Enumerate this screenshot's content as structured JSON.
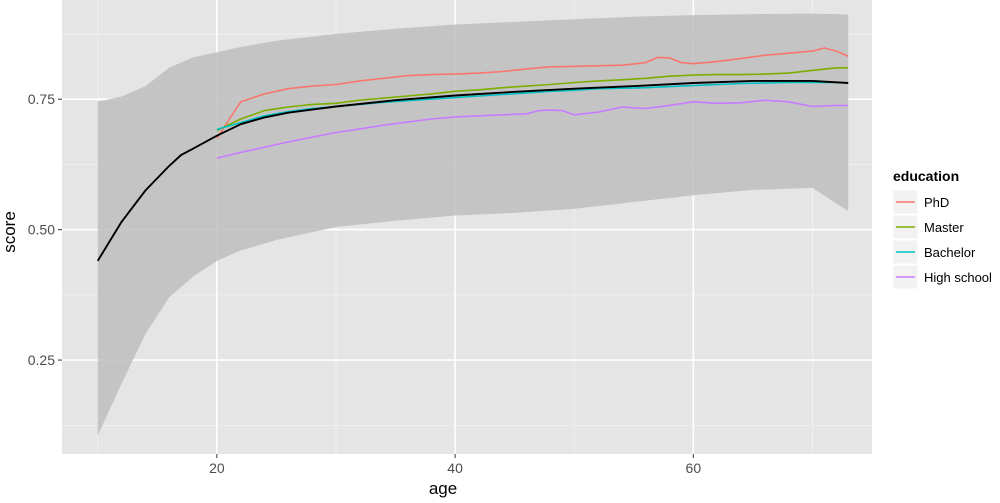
{
  "chart_data": {
    "type": "line",
    "xlabel": "age",
    "ylabel": "score",
    "xlim": [
      7,
      75
    ],
    "ylim": [
      0.07,
      0.94
    ],
    "x_ticks": [
      20,
      40,
      60
    ],
    "y_ticks": [
      0.25,
      0.5,
      0.75
    ],
    "x_tick_labels": [
      "20",
      "40",
      "60"
    ],
    "y_tick_labels": [
      "0.25",
      "0.50",
      "0.75"
    ],
    "grid": true,
    "legend": {
      "title": "education",
      "placement": "right",
      "entries": [
        "PhD",
        "Master",
        "Bachelor",
        "High school"
      ]
    },
    "series": [
      {
        "name": "PhD",
        "color": "#f8766d",
        "x": [
          20,
          21,
          22,
          24,
          26,
          28,
          30,
          32,
          34,
          36,
          38,
          40,
          42,
          44,
          46,
          48,
          50,
          52,
          54,
          56,
          57,
          58,
          59,
          60,
          62,
          64,
          66,
          68,
          70,
          71,
          72,
          73
        ],
        "y": [
          0.675,
          0.71,
          0.745,
          0.76,
          0.77,
          0.775,
          0.778,
          0.785,
          0.79,
          0.795,
          0.797,
          0.798,
          0.8,
          0.803,
          0.808,
          0.812,
          0.813,
          0.814,
          0.815,
          0.82,
          0.83,
          0.829,
          0.82,
          0.818,
          0.822,
          0.828,
          0.834,
          0.838,
          0.842,
          0.848,
          0.842,
          0.832
        ]
      },
      {
        "name": "Master",
        "color": "#7cae00",
        "x": [
          20,
          22,
          24,
          26,
          28,
          30,
          32,
          34,
          36,
          38,
          40,
          42,
          44,
          46,
          48,
          50,
          52,
          54,
          56,
          58,
          60,
          62,
          64,
          66,
          68,
          70,
          72,
          73
        ],
        "y": [
          0.69,
          0.712,
          0.728,
          0.735,
          0.74,
          0.742,
          0.748,
          0.752,
          0.756,
          0.76,
          0.765,
          0.768,
          0.772,
          0.775,
          0.778,
          0.782,
          0.785,
          0.787,
          0.79,
          0.794,
          0.796,
          0.797,
          0.797,
          0.798,
          0.8,
          0.805,
          0.81,
          0.81
        ]
      },
      {
        "name": "Bachelor",
        "color": "#00bfc4",
        "x": [
          20,
          22,
          24,
          26,
          28,
          30,
          32,
          34,
          36,
          38,
          40,
          42,
          44,
          46,
          48,
          50,
          52,
          54,
          56,
          58,
          60,
          62,
          64,
          66,
          68,
          70,
          72,
          73
        ],
        "y": [
          0.692,
          0.705,
          0.718,
          0.726,
          0.732,
          0.736,
          0.74,
          0.744,
          0.747,
          0.75,
          0.753,
          0.756,
          0.759,
          0.762,
          0.765,
          0.767,
          0.77,
          0.771,
          0.772,
          0.774,
          0.776,
          0.778,
          0.78,
          0.781,
          0.782,
          0.782,
          0.782,
          0.781
        ]
      },
      {
        "name": "High school",
        "color": "#c77cff",
        "x": [
          20,
          22,
          24,
          26,
          28,
          30,
          32,
          34,
          36,
          38,
          40,
          42,
          44,
          46,
          47,
          48,
          49,
          50,
          52,
          54,
          56,
          58,
          60,
          62,
          64,
          66,
          68,
          70,
          72,
          73
        ],
        "y": [
          0.637,
          0.648,
          0.658,
          0.668,
          0.677,
          0.686,
          0.693,
          0.7,
          0.706,
          0.712,
          0.716,
          0.718,
          0.72,
          0.722,
          0.728,
          0.729,
          0.728,
          0.72,
          0.725,
          0.735,
          0.732,
          0.738,
          0.745,
          0.742,
          0.743,
          0.748,
          0.745,
          0.736,
          0.738,
          0.738
        ]
      },
      {
        "name": "",
        "color": "#000000",
        "x": [
          10,
          12,
          14,
          16,
          17,
          18,
          20,
          22,
          24,
          26,
          28,
          30,
          35,
          40,
          45,
          50,
          55,
          60,
          65,
          70,
          73
        ],
        "y": [
          0.44,
          0.515,
          0.575,
          0.622,
          0.643,
          0.655,
          0.68,
          0.702,
          0.715,
          0.724,
          0.73,
          0.736,
          0.748,
          0.757,
          0.764,
          0.77,
          0.775,
          0.781,
          0.785,
          0.785,
          0.781
        ]
      }
    ],
    "ribbon": {
      "color": "#bebebe",
      "x": [
        10,
        12,
        14,
        16,
        18,
        20,
        22,
        25,
        30,
        35,
        40,
        45,
        50,
        55,
        60,
        65,
        70,
        72,
        73
      ],
      "ymin": [
        0.105,
        0.205,
        0.3,
        0.37,
        0.41,
        0.44,
        0.46,
        0.48,
        0.505,
        0.517,
        0.527,
        0.532,
        0.54,
        0.553,
        0.566,
        0.576,
        0.58,
        0.55,
        0.535
      ],
      "ymax": [
        0.745,
        0.755,
        0.775,
        0.81,
        0.83,
        0.84,
        0.85,
        0.862,
        0.875,
        0.885,
        0.893,
        0.898,
        0.903,
        0.908,
        0.911,
        0.913,
        0.914,
        0.913,
        0.912
      ]
    }
  }
}
